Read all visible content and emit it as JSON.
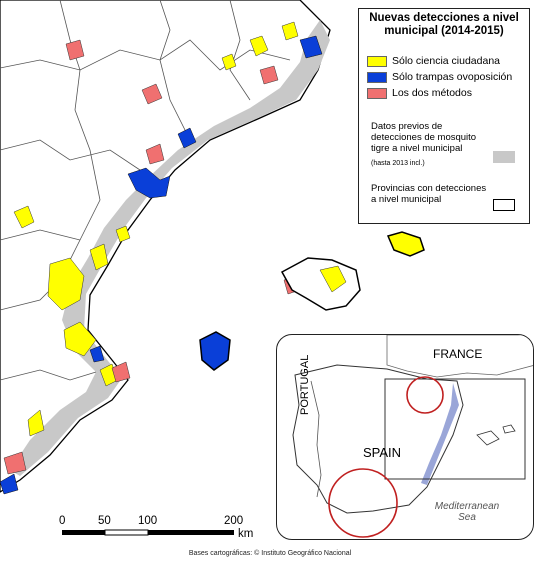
{
  "legend": {
    "title": "Nuevas detecciones a nivel municipal (2014-2015)",
    "items": [
      {
        "label": "Sólo ciencia ciudadana",
        "color": "#ffff00"
      },
      {
        "label": "Sólo trampas ovoposición",
        "color": "#0a3fd8"
      },
      {
        "label": "Los dos métodos",
        "color": "#f07070"
      }
    ],
    "previous_label": "Datos previos de detecciones de mosquito tigre a nivel municipal",
    "previous_note": "(hasta 2013 incl.)",
    "previous_color": "#c8c8c8",
    "provinces_label": "Provincias con detecciones a nivel municipal"
  },
  "scale": {
    "ticks": [
      "0",
      "50",
      "100",
      "200"
    ],
    "unit": "km"
  },
  "inset": {
    "labels": {
      "france": "FRANCE",
      "portugal": "PORTUGAL",
      "spain": "SPAIN",
      "sea": "Mediterranean Sea"
    }
  },
  "credit": "Bases cartográficas: © Instituto Geográfico Nacional"
}
